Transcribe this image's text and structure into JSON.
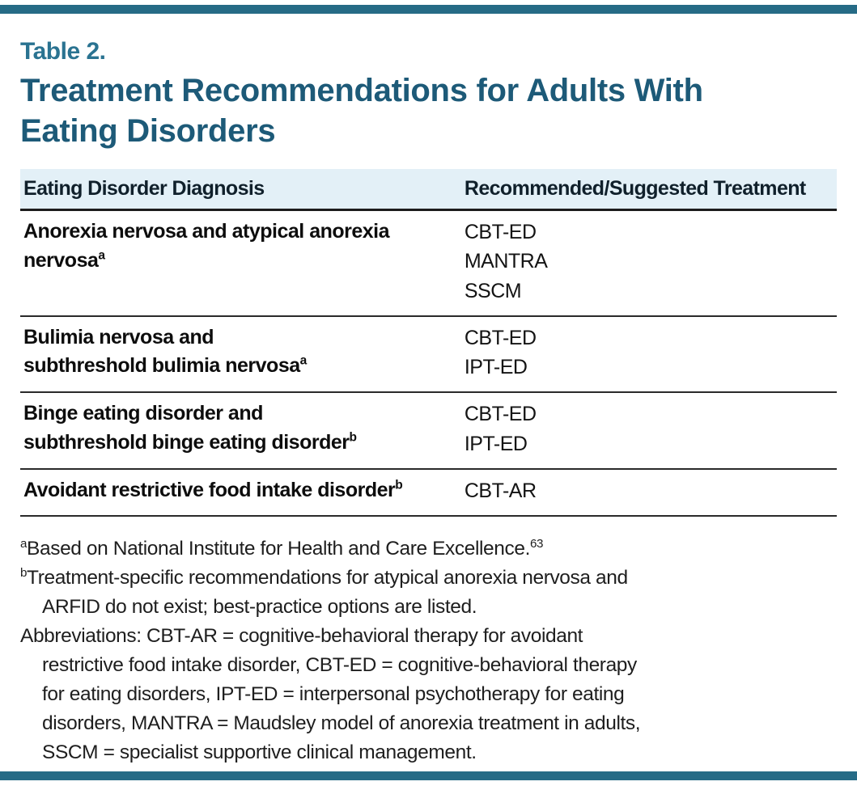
{
  "colors": {
    "accent_bar": "#266b86",
    "table_label": "#2a7391",
    "title": "#1d5a78",
    "header_background": "#e3f0f7"
  },
  "table_label": "Table 2.",
  "title": "Treatment Recommendations for Adults With\nEating Disorders",
  "table": {
    "columns": [
      "Eating Disorder Diagnosis",
      "Recommended/Suggested Treatment"
    ],
    "rows": [
      {
        "diagnosis": "Anorexia nervosa and atypical anorexia\nnervosa",
        "note": "a",
        "treatments": [
          "CBT-ED",
          "MANTRA",
          "SSCM"
        ]
      },
      {
        "diagnosis": "Bulimia nervosa and\nsubthreshold bulimia nervosa",
        "note": "a",
        "treatments": [
          "CBT-ED",
          "IPT-ED"
        ]
      },
      {
        "diagnosis": "Binge eating disorder and\nsubthreshold binge eating disorder",
        "note": "b",
        "treatments": [
          "CBT-ED",
          "IPT-ED"
        ]
      },
      {
        "diagnosis": "Avoidant restrictive food intake disorder",
        "note": "b",
        "treatments": [
          "CBT-AR"
        ]
      }
    ]
  },
  "footnotes": [
    {
      "marker": "a",
      "text": "Based on National Institute for Health and Care Excellence.",
      "ref": "63"
    },
    {
      "marker": "b",
      "text": "Treatment-specific recommendations for atypical anorexia nervosa and\nARFID do not exist; best-practice options are listed."
    },
    {
      "marker": "",
      "text": "Abbreviations: CBT-AR = cognitive-behavioral therapy for avoidant\nrestrictive food intake disorder, CBT-ED = cognitive-behavioral therapy\nfor eating disorders, IPT-ED = interpersonal psychotherapy for eating\ndisorders, MANTRA = Maudsley model of anorexia treatment in adults,\nSSCM = specialist supportive clinical management."
    }
  ]
}
